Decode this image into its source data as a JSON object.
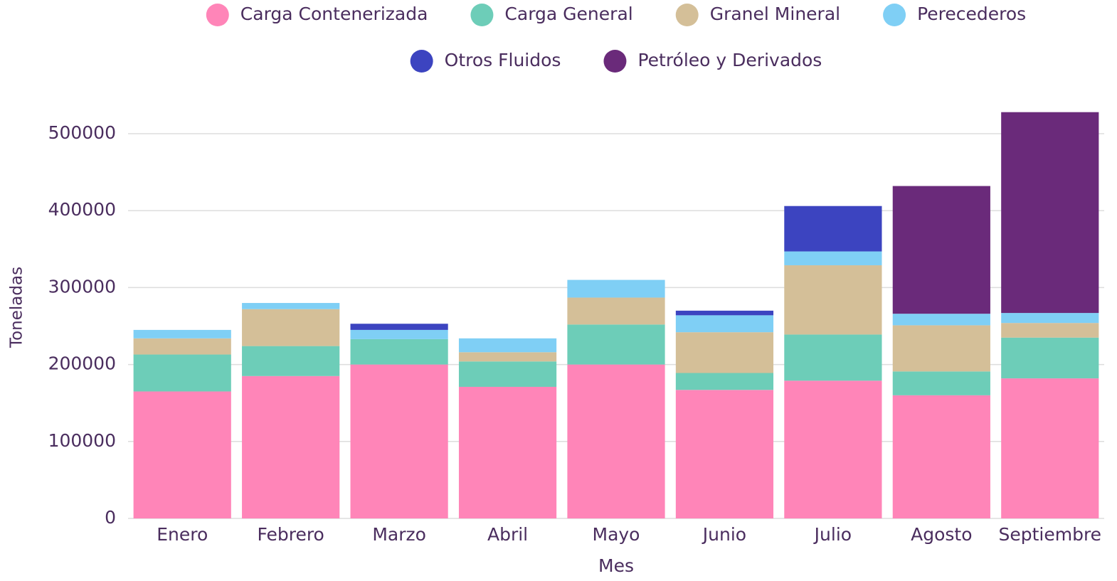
{
  "chart_data": {
    "type": "stacked_bar",
    "x_label": "Mes",
    "y_label": "Toneladas",
    "categories": [
      "Enero",
      "Febrero",
      "Marzo",
      "Abril",
      "Mayo",
      "Junio",
      "Julio",
      "Agosto",
      "Septiembre"
    ],
    "series": [
      {
        "name": "Carga Contenerizada",
        "color": "#ff85b8",
        "values": [
          165000,
          185000,
          200000,
          171000,
          200000,
          167000,
          179000,
          160000,
          182000
        ]
      },
      {
        "name": "Carga General",
        "color": "#6dcdb8",
        "values": [
          48000,
          39000,
          33000,
          33000,
          52000,
          22000,
          60000,
          31000,
          53000
        ]
      },
      {
        "name": "Granel Mineral",
        "color": "#d4bf98",
        "values": [
          21000,
          48000,
          0,
          12000,
          35000,
          53000,
          90000,
          60000,
          19000
        ]
      },
      {
        "name": "Perecederos",
        "color": "#7fcff5",
        "values": [
          11000,
          8000,
          12000,
          18000,
          23000,
          22000,
          18000,
          15000,
          13000
        ]
      },
      {
        "name": "Otros Fluidos",
        "color": "#3c44c0",
        "values": [
          0,
          0,
          8000,
          0,
          0,
          6000,
          59000,
          0,
          0
        ]
      },
      {
        "name": "Petróleo y Derivados",
        "color": "#6a2a7a",
        "values": [
          0,
          0,
          0,
          0,
          0,
          0,
          0,
          166000,
          261000
        ]
      }
    ],
    "ylim": [
      0,
      500000
    ],
    "yticks": [
      0,
      100000,
      200000,
      300000,
      400000,
      500000
    ],
    "grid": true,
    "legend": "top"
  }
}
